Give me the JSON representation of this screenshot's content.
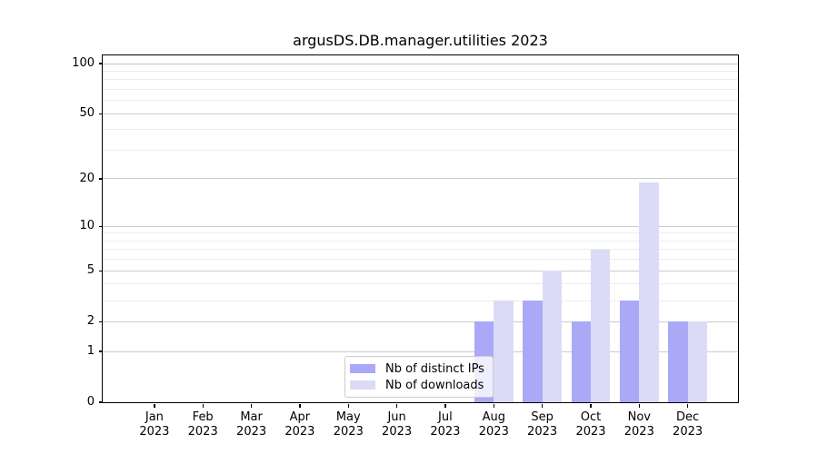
{
  "title": "argusDS.DB.manager.utilities 2023",
  "chart_data": {
    "type": "bar",
    "title": "argusDS.DB.manager.utilities 2023",
    "categories": [
      "Jan",
      "Feb",
      "Mar",
      "Apr",
      "May",
      "Jun",
      "Jul",
      "Aug",
      "Sep",
      "Oct",
      "Nov",
      "Dec"
    ],
    "year": "2023",
    "x_tick_labels": [
      "Jan\n2023",
      "Feb\n2023",
      "Mar\n2023",
      "Apr\n2023",
      "May\n2023",
      "Jun\n2023",
      "Jul\n2023",
      "Aug\n2023",
      "Sep\n2023",
      "Oct\n2023",
      "Nov\n2023",
      "Dec\n2023"
    ],
    "series": [
      {
        "name": "Nb of distinct IPs",
        "color": "#a9a9f8",
        "values": [
          0,
          0,
          0,
          0,
          0,
          0,
          0,
          2,
          3,
          2,
          3,
          2
        ]
      },
      {
        "name": "Nb of downloads",
        "color": "#dbdbf8",
        "values": [
          0,
          0,
          0,
          0,
          0,
          0,
          0,
          3,
          5,
          7,
          19,
          2
        ]
      }
    ],
    "yscale": "symlog",
    "ylim": [
      0,
      100
    ],
    "y_major_ticks": [
      0,
      1,
      2,
      5,
      10,
      20,
      50,
      100
    ],
    "y_tick_labels": [
      "0",
      "1",
      "2",
      "5",
      "10",
      "20",
      "50",
      "100"
    ],
    "y_minor_gridlines": [
      3,
      4,
      6,
      7,
      8,
      9,
      30,
      40,
      60,
      70,
      80,
      90
    ],
    "grid": true,
    "legend_position": "lower center"
  },
  "colors": {
    "background": "#ffffff",
    "axis": "#000000",
    "text": "#000000",
    "grid_major": "#cccccc",
    "grid_minor": "#ededed",
    "legend_border": "#cccccc",
    "bar_distinct_ips": "#a9a9f8",
    "bar_downloads": "#dbdbf8"
  }
}
